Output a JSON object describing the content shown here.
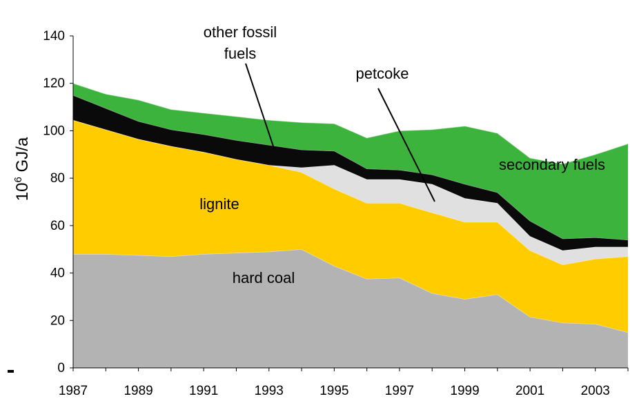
{
  "chart_data": {
    "type": "area",
    "stacked": true,
    "ylabel_base": "10",
    "ylabel_exp": "6",
    "ylabel_unit": " GJ/a",
    "ylim": [
      0,
      140
    ],
    "xlim": [
      1987,
      2004
    ],
    "yticks": [
      0,
      20,
      40,
      60,
      80,
      100,
      120,
      140
    ],
    "xticks": [
      1987,
      1989,
      1991,
      1993,
      1995,
      1997,
      1999,
      2001,
      2003
    ],
    "grid": false,
    "x": [
      1987,
      1988,
      1989,
      1990,
      1991,
      1992,
      1993,
      1994,
      1995,
      1996,
      1997,
      1998,
      1999,
      2000,
      2001,
      2002,
      2003,
      2004
    ],
    "series": [
      {
        "key": "hard_coal",
        "color": "#b3b3b3",
        "values": [
          48,
          48,
          47.5,
          47,
          48,
          48.5,
          49,
          50,
          43,
          37.5,
          38,
          31.5,
          29,
          31,
          21.5,
          19,
          18.5,
          15
        ]
      },
      {
        "key": "lignite",
        "color": "#ffcc00",
        "values": [
          56.5,
          52.5,
          49,
          46.5,
          43,
          39.5,
          36.5,
          32.5,
          32.5,
          32,
          31.5,
          34,
          32.5,
          30.5,
          28,
          24.5,
          27.5,
          32
        ]
      },
      {
        "key": "petcoke",
        "color": "#e0e0e0",
        "values": [
          0,
          0,
          0,
          0,
          0,
          0,
          0,
          2,
          10,
          10,
          10,
          12,
          10,
          8,
          6,
          6,
          5,
          4
        ]
      },
      {
        "key": "other_fossil",
        "color": "#0a0a0a",
        "values": [
          10.5,
          9,
          7.5,
          7,
          7.5,
          8,
          8.5,
          7.5,
          6,
          4.5,
          4,
          4,
          6,
          4.5,
          6.5,
          5,
          4,
          3
        ]
      },
      {
        "key": "secondary",
        "color": "#3cb33c",
        "values": [
          5,
          6,
          9,
          8.5,
          9,
          10,
          10.5,
          11.5,
          11.5,
          13,
          16.5,
          19,
          24.5,
          25,
          26.5,
          31.5,
          35,
          40.5
        ]
      }
    ],
    "annotations": {
      "other_fossil_line1": "other fossil",
      "other_fossil_line2": "fuels",
      "petcoke": "petcoke",
      "secondary": "secondary fuels",
      "lignite": "lignite",
      "hard_coal": "hard coal"
    }
  }
}
